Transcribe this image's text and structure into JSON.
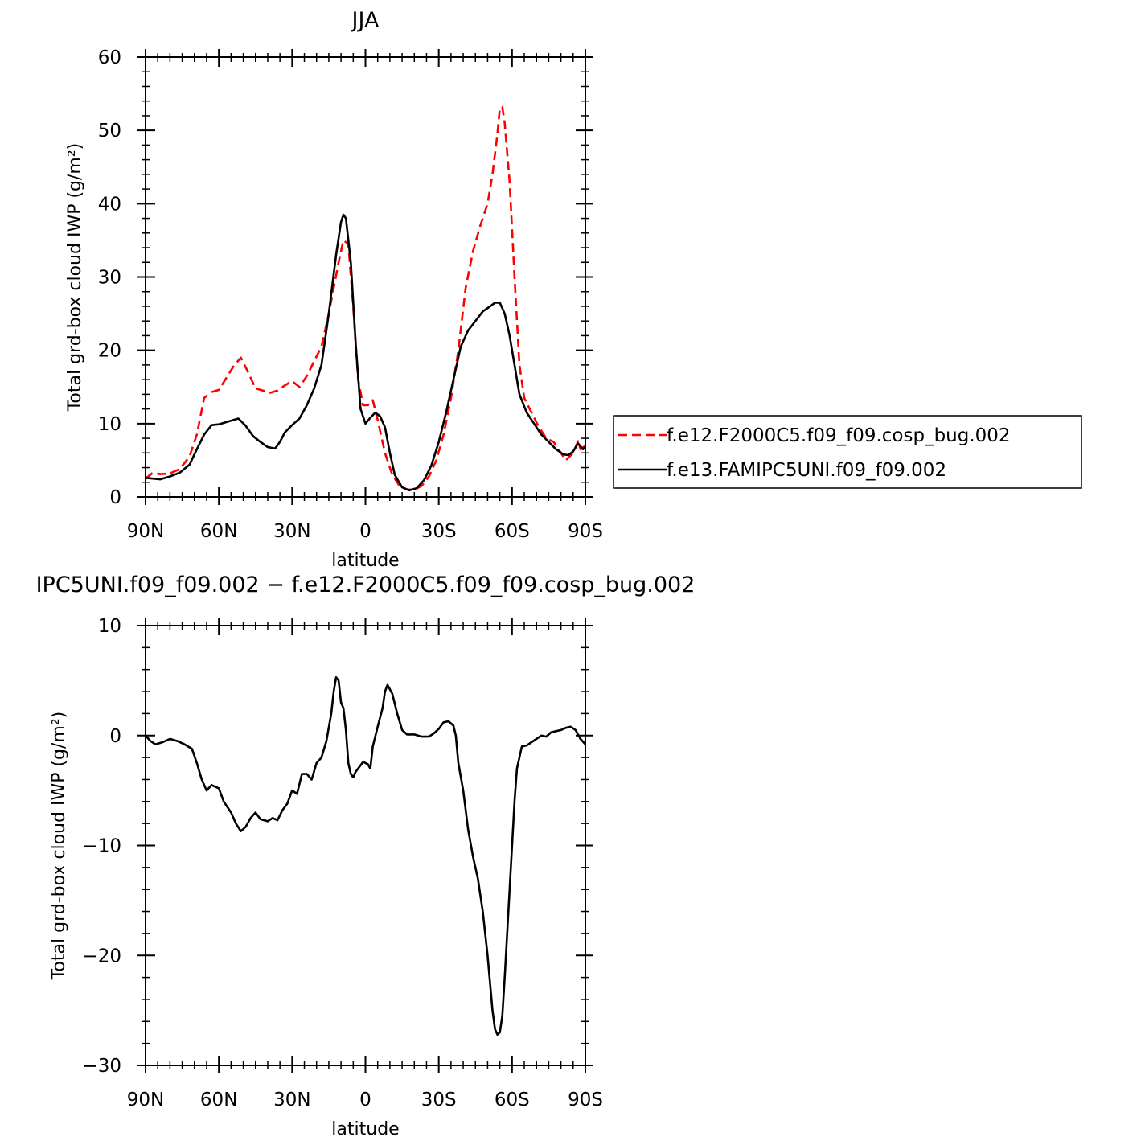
{
  "chart_data": [
    {
      "type": "line",
      "title": "JJA",
      "xlabel": "latitude",
      "ylabel": "Total grd-box cloud IWP (g/m²)",
      "xlim": [
        -90,
        90
      ],
      "ylim": [
        0,
        60
      ],
      "x_ticks": [
        -90,
        -60,
        -30,
        0,
        30,
        60,
        90
      ],
      "x_tick_labels": [
        "90N",
        "60N",
        "30N",
        "0",
        "30S",
        "60S",
        "90S"
      ],
      "y_ticks": [
        0,
        10,
        20,
        30,
        40,
        50,
        60
      ],
      "y_tick_labels": [
        "0",
        "10",
        "20",
        "30",
        "40",
        "50",
        "60"
      ],
      "legend_position": "right",
      "series": [
        {
          "name": "f.e12.F2000C5.f09_f09.cosp_bug.002",
          "color": "#ff0000",
          "dash": "dashed",
          "points": [
            [
              -90,
              2.5
            ],
            [
              -87,
              3.3
            ],
            [
              -84,
              3.1
            ],
            [
              -80,
              3.2
            ],
            [
              -76,
              3.8
            ],
            [
              -72,
              5.5
            ],
            [
              -69,
              8.5
            ],
            [
              -66,
              13.5
            ],
            [
              -63,
              14.3
            ],
            [
              -60,
              14.6
            ],
            [
              -57,
              16.2
            ],
            [
              -54,
              17.8
            ],
            [
              -51,
              19.0
            ],
            [
              -48,
              17.0
            ],
            [
              -45,
              14.8
            ],
            [
              -42,
              14.5
            ],
            [
              -39,
              14.2
            ],
            [
              -36,
              14.5
            ],
            [
              -33,
              15.2
            ],
            [
              -30,
              15.8
            ],
            [
              -27,
              15.0
            ],
            [
              -24,
              16.5
            ],
            [
              -21,
              18.5
            ],
            [
              -18,
              20.5
            ],
            [
              -15,
              25.0
            ],
            [
              -13,
              28.5
            ],
            [
              -11,
              32.0
            ],
            [
              -9,
              35.0
            ],
            [
              -7,
              34.5
            ],
            [
              -5,
              26.0
            ],
            [
              -3,
              16.0
            ],
            [
              -1,
              12.5
            ],
            [
              1,
              12.5
            ],
            [
              3,
              13.2
            ],
            [
              5,
              10.5
            ],
            [
              8,
              6.0
            ],
            [
              11,
              3.0
            ],
            [
              14,
              1.5
            ],
            [
              17,
              1.0
            ],
            [
              20,
              1.0
            ],
            [
              23,
              1.5
            ],
            [
              26,
              2.8
            ],
            [
              29,
              5.0
            ],
            [
              32,
              8.5
            ],
            [
              35,
              13.5
            ],
            [
              38,
              20.0
            ],
            [
              41,
              28.5
            ],
            [
              44,
              33.5
            ],
            [
              47,
              37.0
            ],
            [
              50,
              40.0
            ],
            [
              52,
              44.0
            ],
            [
              54,
              49.5
            ],
            [
              55,
              53.0
            ],
            [
              56,
              53.2
            ],
            [
              57,
              51.0
            ],
            [
              59,
              43.0
            ],
            [
              61,
              30.0
            ],
            [
              63,
              18.0
            ],
            [
              65,
              13.5
            ],
            [
              68,
              11.5
            ],
            [
              71,
              9.5
            ],
            [
              74,
              8.0
            ],
            [
              77,
              7.5
            ],
            [
              80,
              6.0
            ],
            [
              82,
              5.0
            ],
            [
              85,
              6.0
            ],
            [
              87,
              7.6
            ],
            [
              88,
              6.5
            ],
            [
              90,
              7.0
            ]
          ]
        },
        {
          "name": "f.e13.FAMIPC5UNI.f09_f09.002",
          "color": "#000000",
          "dash": "solid",
          "points": [
            [
              -90,
              2.6
            ],
            [
              -87,
              2.5
            ],
            [
              -84,
              2.4
            ],
            [
              -80,
              2.8
            ],
            [
              -76,
              3.3
            ],
            [
              -72,
              4.4
            ],
            [
              -69,
              6.5
            ],
            [
              -66,
              8.5
            ],
            [
              -63,
              9.8
            ],
            [
              -60,
              9.9
            ],
            [
              -57,
              10.2
            ],
            [
              -54,
              10.5
            ],
            [
              -52,
              10.7
            ],
            [
              -49,
              9.7
            ],
            [
              -46,
              8.3
            ],
            [
              -43,
              7.5
            ],
            [
              -40,
              6.8
            ],
            [
              -37,
              6.6
            ],
            [
              -35,
              7.5
            ],
            [
              -33,
              8.8
            ],
            [
              -30,
              9.8
            ],
            [
              -27,
              10.7
            ],
            [
              -24,
              12.5
            ],
            [
              -21,
              14.8
            ],
            [
              -18,
              18.0
            ],
            [
              -15,
              25.0
            ],
            [
              -12,
              33.0
            ],
            [
              -10,
              37.5
            ],
            [
              -9,
              38.5
            ],
            [
              -8,
              38.0
            ],
            [
              -6,
              32.0
            ],
            [
              -4,
              21.0
            ],
            [
              -2,
              12.0
            ],
            [
              0,
              10.0
            ],
            [
              2,
              10.8
            ],
            [
              4,
              11.5
            ],
            [
              6,
              11.0
            ],
            [
              8,
              9.5
            ],
            [
              10,
              6.0
            ],
            [
              12,
              3.0
            ],
            [
              15,
              1.3
            ],
            [
              18,
              0.9
            ],
            [
              21,
              1.2
            ],
            [
              24,
              2.3
            ],
            [
              27,
              4.3
            ],
            [
              30,
              7.5
            ],
            [
              33,
              11.5
            ],
            [
              36,
              16.0
            ],
            [
              39,
              20.5
            ],
            [
              42,
              22.7
            ],
            [
              45,
              24.0
            ],
            [
              48,
              25.3
            ],
            [
              51,
              26.0
            ],
            [
              53,
              26.5
            ],
            [
              55,
              26.5
            ],
            [
              57,
              25.0
            ],
            [
              59,
              22.0
            ],
            [
              61,
              18.0
            ],
            [
              63,
              14.0
            ],
            [
              66,
              11.5
            ],
            [
              69,
              10.0
            ],
            [
              72,
              8.5
            ],
            [
              75,
              7.5
            ],
            [
              78,
              6.5
            ],
            [
              81,
              5.8
            ],
            [
              83,
              5.7
            ],
            [
              85,
              6.2
            ],
            [
              87,
              7.3
            ],
            [
              89,
              6.5
            ],
            [
              90,
              6.8
            ]
          ]
        }
      ]
    },
    {
      "type": "line",
      "title": "IPC5UNI.f09_f09.002 − f.e12.F2000C5.f09_f09.cosp_bug.002",
      "xlabel": "latitude",
      "ylabel": "Total grd-box cloud IWP (g/m²)",
      "xlim": [
        -90,
        90
      ],
      "ylim": [
        -30,
        10
      ],
      "x_ticks": [
        -90,
        -60,
        -30,
        0,
        30,
        60,
        90
      ],
      "x_tick_labels": [
        "90N",
        "60N",
        "30N",
        "0",
        "30S",
        "60S",
        "90S"
      ],
      "y_ticks": [
        -30,
        -20,
        -10,
        0,
        10
      ],
      "y_tick_labels": [
        "−30",
        "−20",
        "−10",
        "0",
        "10"
      ],
      "series": [
        {
          "color": "#000000",
          "dash": "solid",
          "points": [
            [
              -90,
              0.0
            ],
            [
              -88,
              -0.5
            ],
            [
              -86,
              -0.8
            ],
            [
              -83,
              -0.6
            ],
            [
              -80,
              -0.3
            ],
            [
              -77,
              -0.5
            ],
            [
              -74,
              -0.8
            ],
            [
              -71,
              -1.2
            ],
            [
              -69,
              -2.5
            ],
            [
              -67,
              -4.0
            ],
            [
              -65,
              -5.0
            ],
            [
              -63,
              -4.5
            ],
            [
              -60,
              -4.8
            ],
            [
              -58,
              -6.0
            ],
            [
              -55,
              -7.0
            ],
            [
              -53,
              -8.0
            ],
            [
              -51,
              -8.7
            ],
            [
              -49,
              -8.3
            ],
            [
              -47,
              -7.5
            ],
            [
              -45,
              -7.0
            ],
            [
              -43,
              -7.6
            ],
            [
              -40,
              -7.8
            ],
            [
              -38,
              -7.5
            ],
            [
              -36,
              -7.7
            ],
            [
              -34,
              -6.8
            ],
            [
              -32,
              -6.2
            ],
            [
              -30,
              -5.0
            ],
            [
              -28,
              -5.3
            ],
            [
              -26,
              -3.5
            ],
            [
              -24,
              -3.5
            ],
            [
              -22,
              -4.0
            ],
            [
              -20,
              -2.5
            ],
            [
              -18,
              -2.0
            ],
            [
              -16,
              -0.5
            ],
            [
              -14,
              2.0
            ],
            [
              -13,
              4.0
            ],
            [
              -12,
              5.3
            ],
            [
              -11,
              5.0
            ],
            [
              -10,
              3.0
            ],
            [
              -9,
              2.5
            ],
            [
              -8,
              0.5
            ],
            [
              -7,
              -2.5
            ],
            [
              -6,
              -3.5
            ],
            [
              -5,
              -3.8
            ],
            [
              -4,
              -3.3
            ],
            [
              -3,
              -3.0
            ],
            [
              -1,
              -2.4
            ],
            [
              1,
              -2.6
            ],
            [
              2,
              -3.0
            ],
            [
              3,
              -1.0
            ],
            [
              5,
              0.8
            ],
            [
              7,
              2.5
            ],
            [
              8,
              4.0
            ],
            [
              9,
              4.6
            ],
            [
              11,
              3.8
            ],
            [
              13,
              2.0
            ],
            [
              15,
              0.5
            ],
            [
              17,
              0.1
            ],
            [
              20,
              0.1
            ],
            [
              23,
              -0.1
            ],
            [
              26,
              -0.1
            ],
            [
              28,
              0.2
            ],
            [
              30,
              0.6
            ],
            [
              32,
              1.2
            ],
            [
              34,
              1.3
            ],
            [
              36,
              0.9
            ],
            [
              37,
              0.0
            ],
            [
              38,
              -2.5
            ],
            [
              40,
              -5.0
            ],
            [
              42,
              -8.5
            ],
            [
              44,
              -11.0
            ],
            [
              46,
              -13.0
            ],
            [
              48,
              -16.0
            ],
            [
              50,
              -20.0
            ],
            [
              52,
              -25.0
            ],
            [
              53,
              -26.7
            ],
            [
              54,
              -27.2
            ],
            [
              55,
              -27.0
            ],
            [
              56,
              -25.5
            ],
            [
              57,
              -22.0
            ],
            [
              59,
              -14.0
            ],
            [
              61,
              -6.0
            ],
            [
              62,
              -3.0
            ],
            [
              64,
              -1.0
            ],
            [
              66,
              -0.9
            ],
            [
              68,
              -0.6
            ],
            [
              70,
              -0.3
            ],
            [
              72,
              0.0
            ],
            [
              74,
              -0.1
            ],
            [
              76,
              0.3
            ],
            [
              78,
              0.4
            ],
            [
              80,
              0.5
            ],
            [
              82,
              0.7
            ],
            [
              84,
              0.8
            ],
            [
              86,
              0.5
            ],
            [
              88,
              -0.3
            ],
            [
              90,
              -0.8
            ]
          ]
        }
      ]
    }
  ]
}
